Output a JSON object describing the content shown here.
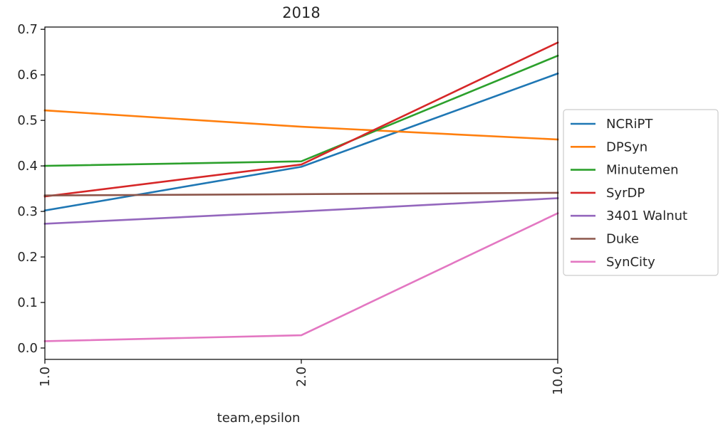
{
  "chart_data": {
    "type": "line",
    "title": "2018",
    "xlabel": "team,epsilon",
    "ylabel": "",
    "categories": [
      "1.0",
      "2.0",
      "10.0"
    ],
    "ylim": [
      -0.025,
      0.705
    ],
    "yticks": [
      "0.0",
      "0.1",
      "0.2",
      "0.3",
      "0.4",
      "0.5",
      "0.6",
      "0.7"
    ],
    "grid": false,
    "legend_position": "right",
    "series": [
      {
        "name": "NCRiPT",
        "color": "#1f77b4",
        "values": [
          0.302,
          0.398,
          0.603
        ]
      },
      {
        "name": "DPSyn",
        "color": "#ff7f0e",
        "values": [
          0.522,
          0.486,
          0.458
        ]
      },
      {
        "name": "Minutemen",
        "color": "#2ca02c",
        "values": [
          0.4,
          0.41,
          0.642
        ]
      },
      {
        "name": "SyrDP",
        "color": "#d62728",
        "values": [
          0.333,
          0.403,
          0.671
        ]
      },
      {
        "name": "3401 Walnut",
        "color": "#9467bd",
        "values": [
          0.273,
          0.3,
          0.329
        ]
      },
      {
        "name": "Duke",
        "color": "#8c564b",
        "values": [
          0.335,
          0.338,
          0.341
        ]
      },
      {
        "name": "SynCity",
        "color": "#e377c2",
        "values": [
          0.015,
          0.028,
          0.296
        ]
      }
    ]
  }
}
